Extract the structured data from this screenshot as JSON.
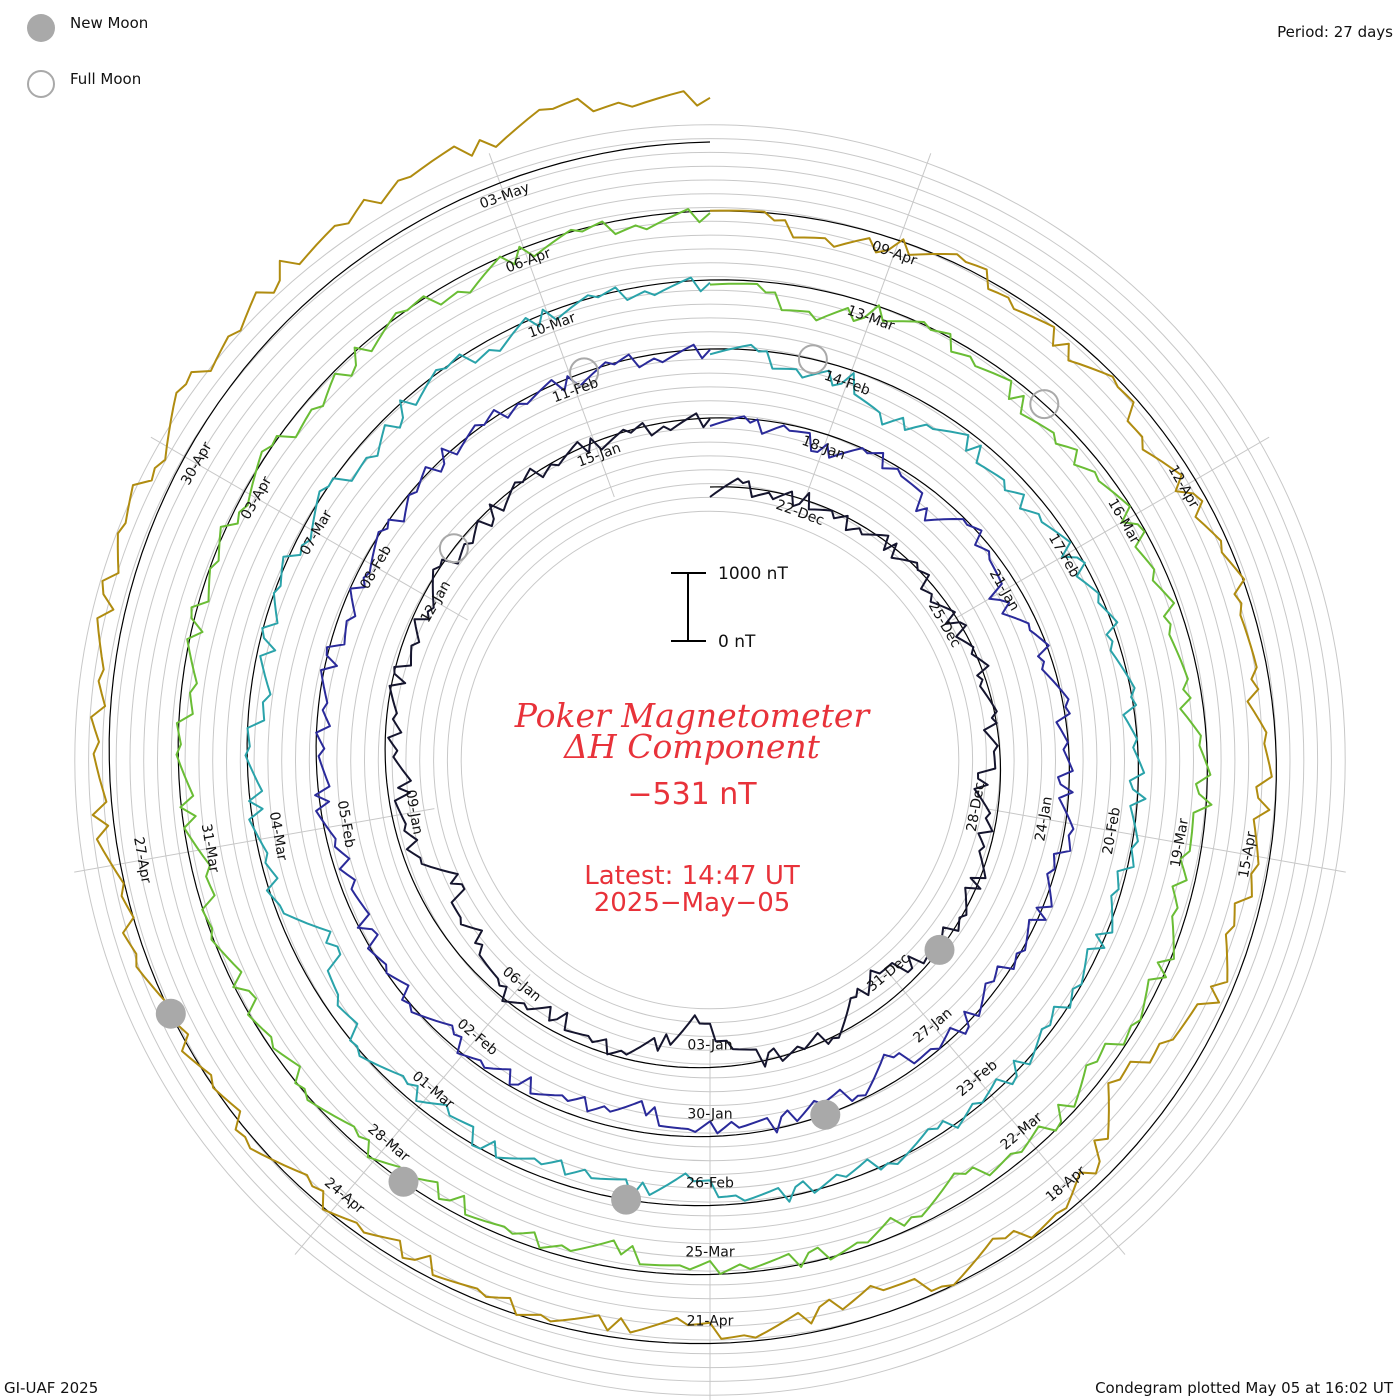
{
  "header": {
    "legend_new_moon": "New Moon",
    "legend_full_moon": "Full Moon",
    "period": "Period: 27 days"
  },
  "center": {
    "title_line1": "Poker Magnetometer",
    "title_line2": "ΔH Component",
    "value": "−531 nT",
    "latest_line1": "Latest: 14:47 UT",
    "latest_line2": "2025−May−05",
    "scale_top": "1000 nT",
    "scale_bottom": "0 nT"
  },
  "footer": {
    "left": "GI-UAF 2025",
    "right": "Condegram plotted May 05 at 16:02 UT"
  },
  "colors": {
    "title": "#e8323a",
    "new_moon": "#a9a9a9",
    "full_moon": "#a9a9a9",
    "grid": "#c8c8c8"
  },
  "chart_data": {
    "type": "line",
    "title": "Poker Magnetometer ΔH Component",
    "subtitle": "−531 nT",
    "period_days": 27,
    "scale_bar_nT": [
      0,
      1000
    ],
    "grid": true,
    "series": [
      {
        "color": "#15152e",
        "date_labels": [
          "22-Dec",
          "25-Dec",
          "28-Dec",
          "31-Dec",
          "03-Jan",
          "06-Jan",
          "09-Jan",
          "12-Jan",
          "15-Jan"
        ],
        "nT": [
          -30,
          20,
          -60,
          0,
          -120,
          -40,
          -20,
          -10,
          -80,
          -60,
          -30,
          10,
          -100,
          -40,
          -300,
          -180,
          -70,
          -30,
          -20,
          -40,
          -200,
          -500,
          -250,
          -30,
          -20,
          -30,
          -400,
          -700,
          -300,
          -100,
          -60,
          -250,
          -100,
          -50,
          -400,
          -300,
          -600,
          -250,
          -100,
          -250,
          -180,
          -50,
          -80,
          -200,
          -100,
          -40,
          -120,
          -70,
          -30,
          -10,
          -20,
          -40,
          -30,
          -10
        ]
      },
      {
        "color": "#2a2a9a",
        "date_labels": [
          "18-Jan",
          "21-Jan",
          "24-Jan",
          "27-Jan",
          "30-Jan",
          "02-Feb",
          "05-Feb",
          "08-Feb",
          "11-Feb"
        ],
        "nT": [
          0,
          -100,
          -40,
          -250,
          -60,
          -20,
          -350,
          -40,
          -30,
          -400,
          -120,
          -60,
          -20,
          -30,
          -60,
          50,
          -30,
          20,
          -40,
          -80,
          -20,
          -60,
          -300,
          -120,
          -200,
          -60,
          -220,
          -40,
          -350,
          -260,
          -120,
          -150,
          -60,
          -100,
          -40,
          -20,
          -100,
          -250,
          -60,
          -40,
          -120,
          -30,
          -60,
          -200,
          -40,
          -100,
          -20,
          0,
          -30,
          -10,
          -60,
          -20,
          -40,
          -10
        ]
      },
      {
        "color": "#2aa3aa",
        "date_labels": [
          "14-Feb",
          "17-Feb",
          "20-Feb",
          "23-Feb",
          "26-Feb",
          "01-Mar",
          "04-Mar",
          "07-Mar",
          "10-Mar"
        ],
        "nT": [
          40,
          -60,
          -250,
          -150,
          -600,
          -200,
          -150,
          -300,
          -100,
          -120,
          -50,
          -30,
          -60,
          -20,
          0,
          -20,
          -50,
          -40,
          -80,
          -30,
          -20,
          -60,
          -40,
          -50,
          -80,
          -40,
          -150,
          -400,
          -150,
          -300,
          -120,
          -70,
          -250,
          -80,
          -60,
          -200,
          -600,
          -100,
          -50,
          -80,
          -40,
          -200,
          -120,
          -30,
          -60,
          -50,
          -250,
          -80,
          -40,
          -150,
          -30,
          -20,
          -60,
          -40
        ]
      },
      {
        "color": "#6abd35",
        "date_labels": [
          "13-Mar",
          "16-Mar",
          "19-Mar",
          "22-Mar",
          "25-Mar",
          "28-Mar",
          "31-Mar",
          "03-Apr",
          "06-Apr"
        ],
        "nT": [
          50,
          -200,
          -400,
          -100,
          -50,
          -100,
          -200,
          -300,
          -80,
          -120,
          -200,
          -150,
          -300,
          -60,
          -40,
          -300,
          -120,
          -50,
          -80,
          -200,
          -100,
          -150,
          -300,
          -200,
          -50,
          -80,
          -150,
          -60,
          -300,
          -150,
          -40,
          -200,
          -120,
          -60,
          -80,
          -50,
          -100,
          -60,
          -200,
          -80,
          -40,
          -120,
          -30,
          -60,
          -20,
          -40,
          -180,
          -70,
          -30,
          -200,
          -60,
          -40,
          -100,
          -30
        ]
      },
      {
        "color": "#b08c10",
        "date_labels": [
          "09-Apr",
          "12-Apr",
          "15-Apr",
          "18-Apr",
          "21-Apr",
          "24-Apr",
          "27-Apr",
          "30-Apr",
          "03-May"
        ],
        "nT": [
          120,
          -150,
          -300,
          -80,
          60,
          -100,
          -200,
          -80,
          -300,
          -200,
          -120,
          -80,
          -300,
          -120,
          -200,
          -250,
          -300,
          -200,
          -600,
          -800,
          -300,
          -60,
          -200,
          -100,
          -400,
          -250,
          -120,
          -300,
          -180,
          -100,
          -60,
          -200,
          -100,
          -80,
          30,
          -20,
          60,
          100,
          80,
          200,
          150,
          250,
          300,
          400,
          350,
          500,
          450,
          600,
          500,
          700,
          600,
          800,
          700,
          650
        ]
      }
    ],
    "moon_markers": {
      "new_moon": [
        "31-Dec",
        "29-Jan",
        "28-Feb",
        "29-Mar",
        "27-Apr"
      ],
      "full_moon": [
        "13-Jan",
        "12-Feb",
        "14-Mar",
        "13-Apr"
      ]
    }
  }
}
